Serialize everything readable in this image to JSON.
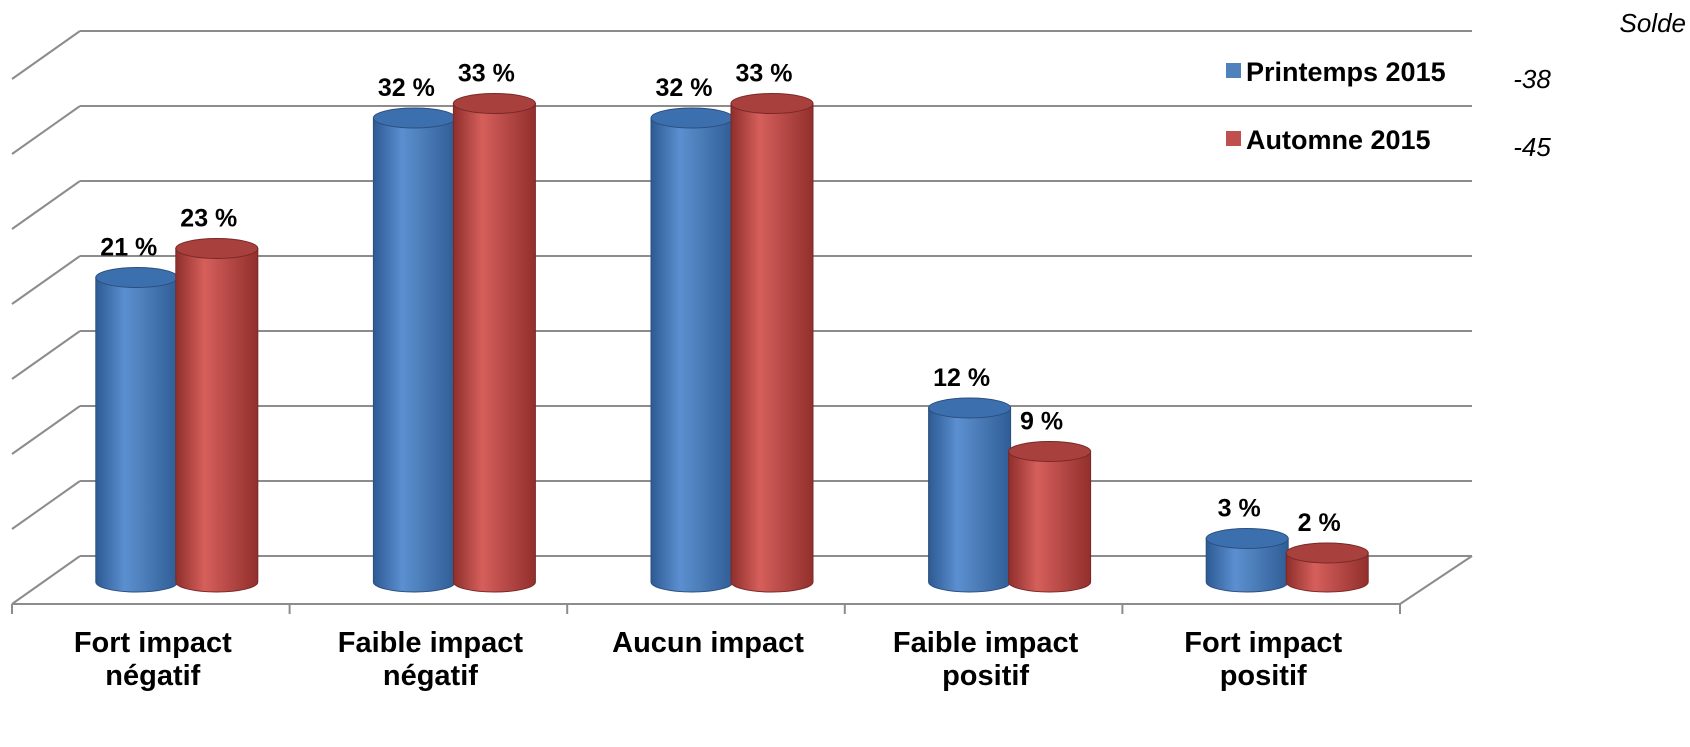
{
  "chart_data": {
    "type": "bar",
    "title": "",
    "xlabel": "",
    "ylabel": "",
    "ylim": [
      0,
      35
    ],
    "grid": true,
    "legend_position": "top-right",
    "categories": [
      [
        "Fort impact",
        "négatif"
      ],
      [
        "Faible impact",
        "négatif"
      ],
      [
        "Aucun impact"
      ],
      [
        "Faible impact",
        "positif"
      ],
      [
        "Fort impact",
        "positif"
      ]
    ],
    "series": [
      {
        "name": "Printemps 2015",
        "color": "#4F81BD",
        "values": [
          21,
          32,
          32,
          12,
          3
        ],
        "labels": [
          "21 %",
          "32 %",
          "32 %",
          "12 %",
          "3 %"
        ]
      },
      {
        "name": "Automne 2015",
        "color": "#C0504D",
        "values": [
          23,
          33,
          33,
          9,
          2
        ],
        "labels": [
          "23 %",
          "33 %",
          "33 %",
          "9 %",
          "2 %"
        ]
      }
    ],
    "solde": {
      "header": "Solde",
      "values": [
        "-38",
        "-45"
      ]
    }
  }
}
